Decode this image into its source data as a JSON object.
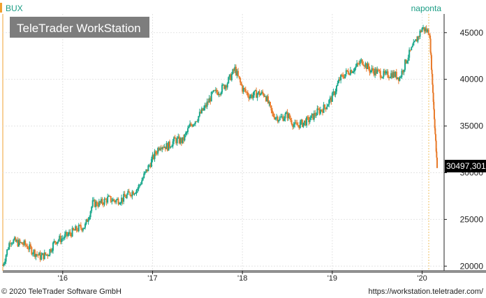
{
  "chart_data": {
    "type": "candlestick",
    "title": "BUX",
    "period_label": "naponta",
    "last_value_label": "30497,301",
    "y_ticks": [
      20000,
      25000,
      30000,
      35000,
      40000,
      45000
    ],
    "y_tick_labels": [
      "20000",
      "25000",
      "30000",
      "35000",
      "40000",
      "45000"
    ],
    "ylim": [
      19500,
      47000
    ],
    "x_ticks": [
      "'16",
      "'17",
      "'18",
      "'19",
      "'20"
    ],
    "x_range": [
      "2015-05",
      "2020-03"
    ],
    "series": [
      {
        "dates": [
          "2015-05",
          "2015-06",
          "2015-07",
          "2015-08",
          "2015-09",
          "2015-10",
          "2015-11",
          "2015-12",
          "2016-01",
          "2016-02",
          "2016-03",
          "2016-04",
          "2016-05",
          "2016-06",
          "2016-07",
          "2016-08",
          "2016-09",
          "2016-10",
          "2016-11",
          "2016-12",
          "2017-01",
          "2017-02",
          "2017-03",
          "2017-04",
          "2017-05",
          "2017-06",
          "2017-07",
          "2017-08",
          "2017-09",
          "2017-10",
          "2017-11",
          "2017-12",
          "2018-01",
          "2018-02",
          "2018-03",
          "2018-04",
          "2018-05",
          "2018-06",
          "2018-07",
          "2018-08",
          "2018-09",
          "2018-10",
          "2018-11",
          "2018-12",
          "2019-01",
          "2019-02",
          "2019-03",
          "2019-04",
          "2019-05",
          "2019-06",
          "2019-07",
          "2019-08",
          "2019-09",
          "2019-10",
          "2019-11",
          "2019-12",
          "2020-01",
          "2020-02",
          "2020-03"
        ],
        "values": [
          20100,
          22800,
          22500,
          22300,
          21600,
          21000,
          21300,
          22700,
          23000,
          23500,
          24000,
          24300,
          26700,
          26700,
          27200,
          27000,
          27200,
          27800,
          28300,
          29900,
          31500,
          33000,
          32800,
          33500,
          33400,
          35000,
          35900,
          37000,
          38400,
          38800,
          39700,
          41100,
          39000,
          38200,
          38500,
          38400,
          36200,
          35800,
          36200,
          35000,
          35300,
          35700,
          36500,
          37000,
          38100,
          40000,
          40800,
          41200,
          42000,
          41000,
          40800,
          40400,
          40600,
          40200,
          42300,
          43800,
          45500,
          45000,
          30497
        ]
      }
    ],
    "colors": {
      "up": "#1aa88c",
      "down": "#e87a2a",
      "axis": "#222222",
      "grid": "#e4e4e4",
      "tag_bg": "#000000"
    }
  },
  "logo_text": "TeleTrader WorkStation",
  "footer": {
    "copyright": "© 2020 TeleTrader Software GmbH",
    "url": "https://workstation.teletrader.com/"
  }
}
